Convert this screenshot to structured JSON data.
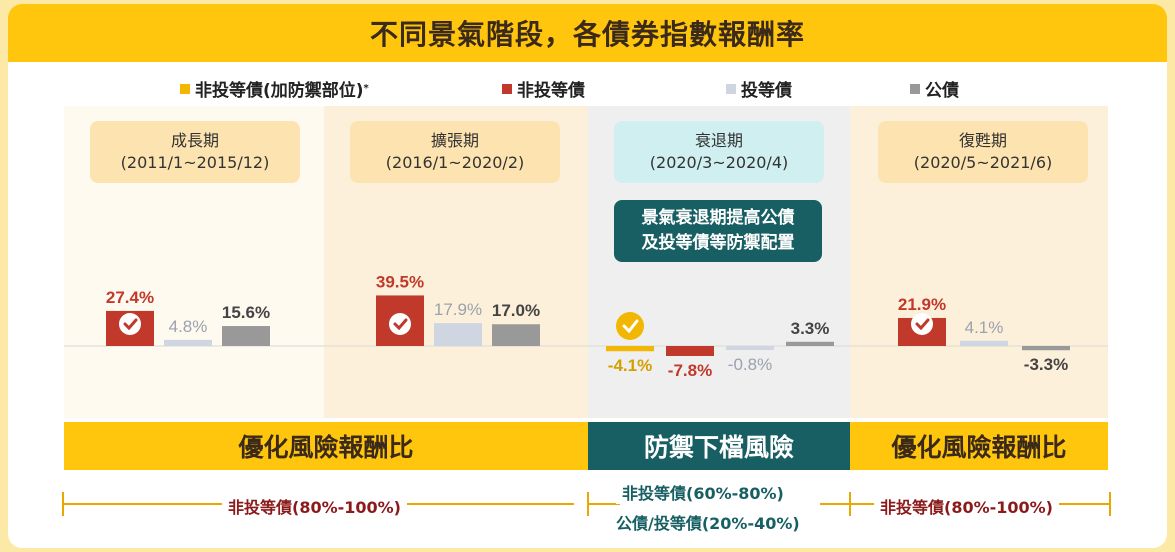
{
  "title": "不同景氣階段，各債券指數報酬率",
  "legend": [
    {
      "label": "非投等債(加防禦部位)",
      "note": "*",
      "color": "#f2b705"
    },
    {
      "label": "非投等債",
      "color": "#c0392b"
    },
    {
      "label": "投等債",
      "color": "#cfd6e2"
    },
    {
      "label": "公債",
      "color": "#999999"
    }
  ],
  "phases": [
    {
      "name": "成長期",
      "period": "(2011/1~2015/12)"
    },
    {
      "name": "擴張期",
      "period": "(2016/1~2020/2)"
    },
    {
      "name": "衰退期",
      "period": "(2020/3~2020/4)"
    },
    {
      "name": "復甦期",
      "period": "(2020/5~2021/6)"
    }
  ],
  "recession_note": [
    "景氣衰退期提高公債",
    "及投等債等防禦配置"
  ],
  "bands": [
    {
      "label": "優化風險報酬比"
    },
    {
      "label": "防禦下檔風險"
    },
    {
      "label": "優化風險報酬比"
    }
  ],
  "allocations": {
    "left": "非投等債(80%-100%)",
    "middle_1": "非投等債(60%-80%)",
    "middle_2": "公債/投等債(20%-40%)",
    "right": "非投等債(80%-100%)"
  },
  "check_icon": "check-circle-icon",
  "chart_data": {
    "type": "bar",
    "categories": [
      "成長期",
      "擴張期",
      "衰退期",
      "復甦期"
    ],
    "series": [
      {
        "name": "非投等債(加防禦部位)",
        "color": "#f2b705",
        "values": [
          null,
          null,
          -4.1,
          null
        ],
        "labels": [
          "",
          "",
          "-4.1%",
          ""
        ]
      },
      {
        "name": "非投等債",
        "color": "#c0392b",
        "values": [
          27.4,
          39.5,
          -7.8,
          21.9
        ],
        "labels": [
          "27.4%",
          "39.5%",
          "-7.8%",
          "21.9%"
        ]
      },
      {
        "name": "投等債",
        "color": "#cfd6e2",
        "values": [
          4.8,
          17.9,
          -0.8,
          4.1
        ],
        "labels": [
          "4.8%",
          "17.9%",
          "-0.8%",
          "4.1%"
        ]
      },
      {
        "name": "公債",
        "color": "#999999",
        "values": [
          15.6,
          17.0,
          3.3,
          -3.3
        ],
        "labels": [
          "15.6%",
          "17.0%",
          "3.3%",
          "-3.3%"
        ]
      }
    ],
    "unit": "%"
  }
}
